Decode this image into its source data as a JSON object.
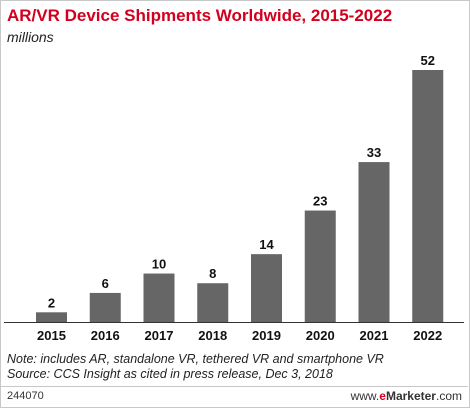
{
  "chart_data": {
    "type": "bar",
    "title": "AR/VR Device Shipments Worldwide, 2015-2022",
    "subtitle": "millions",
    "categories": [
      "2015",
      "2016",
      "2017",
      "2018",
      "2019",
      "2020",
      "2021",
      "2022"
    ],
    "values": [
      2,
      6,
      10,
      8,
      14,
      23,
      33,
      52
    ],
    "data_labels": [
      "2",
      "6",
      "10",
      "8",
      "14",
      "23",
      "33",
      "52"
    ],
    "ylim": [
      0,
      52
    ],
    "grid": false,
    "bar_color": "#666666"
  },
  "notes": {
    "line1": "Note: includes AR, standalone VR, tethered VR and smartphone VR",
    "line2": "Source: CCS Insight as cited in press release, Dec 3, 2018"
  },
  "footer": {
    "id": "244070",
    "brand_e": "e",
    "brand_rest": "Marketer",
    "brand_domain": ".com"
  },
  "colors": {
    "accent": "#d2001f",
    "bars": "#666666",
    "text": "#222222"
  }
}
